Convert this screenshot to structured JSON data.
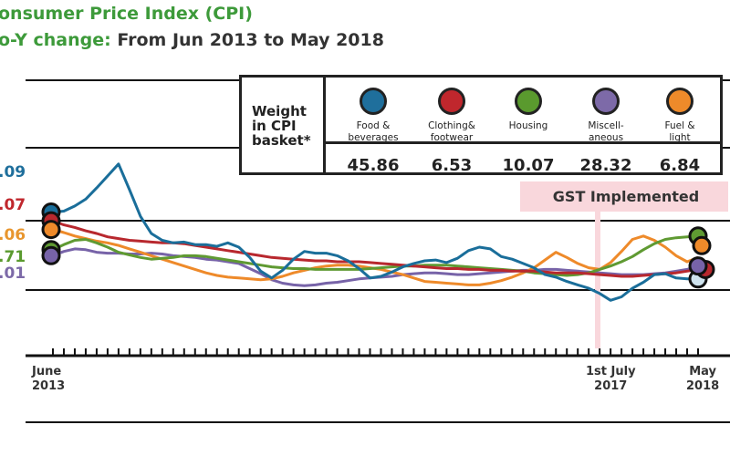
{
  "title": {
    "line1": "onsumer Price Index (CPI)",
    "line2_colored": "o-Y change:",
    "line2_rest": " From Jun 2013 to May 2018"
  },
  "legend": {
    "weight_label_lines": [
      "Weight",
      "in CPI",
      "basket*"
    ],
    "items": [
      {
        "name_lines": [
          "Food &",
          "beverages"
        ],
        "color": "#1f6f9c",
        "weight": "45.86"
      },
      {
        "name_lines": [
          "Clothing&",
          "footwear"
        ],
        "color": "#c0272d",
        "weight": "6.53"
      },
      {
        "name_lines": [
          "Housing",
          ""
        ],
        "color": "#5a9a2e",
        "weight": "10.07"
      },
      {
        "name_lines": [
          "Miscell-",
          "aneous"
        ],
        "color": "#7d6aa8",
        "weight": "28.32"
      },
      {
        "name_lines": [
          "Fuel &",
          "light"
        ],
        "color": "#ee8a2a",
        "weight": "6.84"
      }
    ]
  },
  "annotation": {
    "label": "GST Implemented"
  },
  "start_labels": [
    {
      "text": ".09",
      "color": "#1f6f9c"
    },
    {
      "text": ".07",
      "color": "#c0272d"
    },
    {
      "text": ".06",
      "color": "#e8962e"
    },
    {
      "text": ".71",
      "color": "#5a9a2e"
    },
    {
      "text": ".01",
      "color": "#7d6aa8"
    }
  ],
  "x_ticks": [
    {
      "lines": [
        "June",
        "2013"
      ]
    },
    {
      "lines": [
        "1st July",
        "2017"
      ]
    },
    {
      "lines": [
        "May",
        "2018"
      ]
    }
  ],
  "chart_data": {
    "type": "line",
    "x_range": [
      "Jun 2013",
      "May 2018"
    ],
    "n_points": 60,
    "series": [
      {
        "name": "Food & beverages",
        "color": "#1a6e9a",
        "start_label": ".09",
        "values": [
          9.09,
          9.2,
          9.8,
          10.6,
          11.9,
          13.3,
          14.7,
          11.7,
          8.6,
          6.6,
          5.8,
          5.5,
          5.6,
          5.3,
          5.3,
          5.1,
          5.5,
          5.0,
          3.8,
          2.2,
          1.4,
          2.3,
          3.6,
          4.5,
          4.3,
          4.3,
          4.0,
          3.4,
          2.5,
          1.4,
          1.6,
          2.1,
          2.7,
          3.1,
          3.4,
          3.5,
          3.2,
          3.7,
          4.6,
          5.0,
          4.8,
          3.9,
          3.6,
          3.1,
          2.6,
          1.8,
          1.5,
          1.0,
          0.6,
          0.2,
          -0.4,
          -1.2,
          -0.8,
          0.2,
          0.9,
          1.8,
          1.9,
          1.4,
          1.3,
          1.3
        ]
      },
      {
        "name": "Clothing & footwear",
        "color": "#b8282e",
        "start_label": ".07",
        "values": [
          8.07,
          7.6,
          7.3,
          6.9,
          6.6,
          6.2,
          6.0,
          5.8,
          5.7,
          5.6,
          5.5,
          5.5,
          5.4,
          5.2,
          5.0,
          4.8,
          4.6,
          4.4,
          4.2,
          4.0,
          3.8,
          3.7,
          3.6,
          3.5,
          3.4,
          3.4,
          3.3,
          3.3,
          3.3,
          3.2,
          3.1,
          3.0,
          2.9,
          2.8,
          2.7,
          2.6,
          2.5,
          2.5,
          2.4,
          2.4,
          2.3,
          2.3,
          2.2,
          2.2,
          2.2,
          2.1,
          2.0,
          2.0,
          2.0,
          1.9,
          1.8,
          1.7,
          1.6,
          1.6,
          1.7,
          1.8,
          1.9,
          2.0,
          2.2,
          2.4
        ]
      },
      {
        "name": "Housing",
        "color": "#5f9a32",
        "start_label": ".71",
        "values": [
          4.71,
          5.3,
          5.8,
          5.9,
          5.5,
          5.0,
          4.4,
          4.1,
          3.8,
          3.6,
          3.7,
          3.8,
          4.0,
          4.0,
          3.9,
          3.7,
          3.5,
          3.3,
          3.1,
          2.9,
          2.7,
          2.6,
          2.5,
          2.5,
          2.4,
          2.4,
          2.4,
          2.4,
          2.4,
          2.5,
          2.6,
          2.7,
          2.8,
          2.8,
          2.9,
          2.9,
          2.9,
          2.8,
          2.7,
          2.6,
          2.5,
          2.4,
          2.3,
          2.2,
          2.0,
          1.9,
          1.8,
          1.7,
          1.8,
          2.0,
          2.4,
          2.8,
          3.3,
          3.9,
          4.7,
          5.4,
          5.9,
          6.1,
          6.2,
          6.3
        ]
      },
      {
        "name": "Miscellaneous",
        "color": "#7763a8",
        "start_label": ".01",
        "values": [
          4.01,
          4.5,
          4.8,
          4.7,
          4.4,
          4.3,
          4.3,
          4.2,
          4.2,
          4.3,
          4.2,
          4.0,
          3.9,
          3.8,
          3.6,
          3.5,
          3.3,
          3.1,
          2.5,
          1.9,
          1.2,
          0.8,
          0.6,
          0.5,
          0.6,
          0.8,
          0.9,
          1.1,
          1.3,
          1.4,
          1.5,
          1.6,
          1.8,
          1.9,
          2.0,
          2.0,
          1.9,
          1.8,
          1.8,
          1.9,
          2.0,
          2.1,
          2.2,
          2.3,
          2.3,
          2.4,
          2.4,
          2.3,
          2.2,
          2.1,
          2.0,
          1.9,
          1.8,
          1.8,
          1.8,
          1.9,
          2.0,
          2.2,
          2.4,
          2.8
        ]
      },
      {
        "name": "Fuel & light",
        "color": "#ee8a2a",
        "start_label": ".06",
        "values": [
          7.06,
          6.7,
          6.3,
          6.0,
          5.7,
          5.5,
          5.2,
          4.8,
          4.4,
          4.0,
          3.6,
          3.2,
          2.8,
          2.4,
          2.0,
          1.7,
          1.5,
          1.4,
          1.3,
          1.2,
          1.3,
          1.6,
          2.0,
          2.3,
          2.6,
          2.8,
          2.9,
          2.9,
          2.8,
          2.6,
          2.4,
          2.1,
          1.8,
          1.4,
          1.0,
          0.9,
          0.8,
          0.7,
          0.6,
          0.6,
          0.8,
          1.1,
          1.5,
          2.0,
          2.6,
          3.5,
          4.4,
          3.8,
          3.1,
          2.6,
          2.4,
          3.2,
          4.5,
          5.9,
          6.3,
          5.8,
          5.0,
          4.0,
          3.3,
          3.8
        ]
      }
    ],
    "grid": "horizontal lines",
    "legend_placement": "top-right"
  }
}
